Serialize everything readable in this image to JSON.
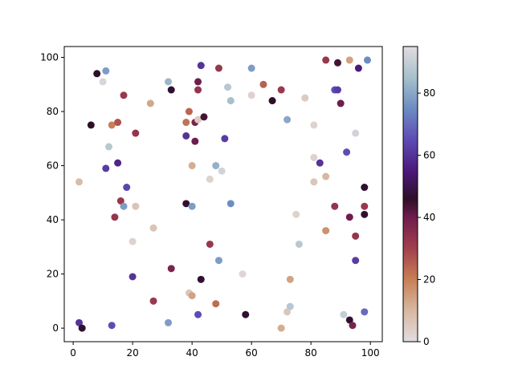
{
  "chart_data": {
    "type": "scatter",
    "title": "",
    "xlabel": "",
    "ylabel": "",
    "xlim": [
      -3,
      104
    ],
    "ylim": [
      -5,
      104
    ],
    "x_ticks": [
      0,
      20,
      40,
      60,
      80,
      100
    ],
    "y_ticks": [
      0,
      20,
      40,
      60,
      80,
      100
    ],
    "grid": false,
    "colormap": "twilight_shifted",
    "colorbar": {
      "range": [
        0,
        95
      ],
      "ticks": [
        0,
        20,
        40,
        60,
        80
      ]
    },
    "colormap_stops": [
      {
        "v": 0,
        "color": "#e2dce0"
      },
      {
        "v": 10,
        "color": "#d8b8a2"
      },
      {
        "v": 20,
        "color": "#c78056"
      },
      {
        "v": 30,
        "color": "#a33f4e"
      },
      {
        "v": 40,
        "color": "#6e1d4c"
      },
      {
        "v": 46,
        "color": "#2d0f28"
      },
      {
        "v": 55,
        "color": "#4b1a7a"
      },
      {
        "v": 65,
        "color": "#5e4bb4"
      },
      {
        "v": 75,
        "color": "#6d8cc2"
      },
      {
        "v": 85,
        "color": "#a6c0cc"
      },
      {
        "v": 95,
        "color": "#e2dce0"
      }
    ],
    "points": [
      {
        "x": 2,
        "y": 2,
        "c": 60
      },
      {
        "x": 3,
        "y": 0,
        "c": 47
      },
      {
        "x": 2,
        "y": 54,
        "c": 9
      },
      {
        "x": 6,
        "y": 75,
        "c": 46
      },
      {
        "x": 8,
        "y": 94,
        "c": 46
      },
      {
        "x": 10,
        "y": 91,
        "c": 93
      },
      {
        "x": 11,
        "y": 95,
        "c": 78
      },
      {
        "x": 11,
        "y": 59,
        "c": 62
      },
      {
        "x": 12,
        "y": 67,
        "c": 88
      },
      {
        "x": 13,
        "y": 75,
        "c": 20
      },
      {
        "x": 13,
        "y": 1,
        "c": 65
      },
      {
        "x": 14,
        "y": 41,
        "c": 33
      },
      {
        "x": 15,
        "y": 76,
        "c": 27
      },
      {
        "x": 15,
        "y": 61,
        "c": 57
      },
      {
        "x": 16,
        "y": 47,
        "c": 32
      },
      {
        "x": 17,
        "y": 86,
        "c": 32
      },
      {
        "x": 17,
        "y": 45,
        "c": 78
      },
      {
        "x": 18,
        "y": 52,
        "c": 64
      },
      {
        "x": 20,
        "y": 32,
        "c": 3
      },
      {
        "x": 20,
        "y": 19,
        "c": 60
      },
      {
        "x": 21,
        "y": 72,
        "c": 33
      },
      {
        "x": 21,
        "y": 45,
        "c": 7
      },
      {
        "x": 26,
        "y": 83,
        "c": 13
      },
      {
        "x": 27,
        "y": 37,
        "c": 7
      },
      {
        "x": 27,
        "y": 10,
        "c": 32
      },
      {
        "x": 32,
        "y": 91,
        "c": 83
      },
      {
        "x": 32,
        "y": 2,
        "c": 78
      },
      {
        "x": 33,
        "y": 88,
        "c": 47
      },
      {
        "x": 33,
        "y": 22,
        "c": 38
      },
      {
        "x": 38,
        "y": 71,
        "c": 60
      },
      {
        "x": 38,
        "y": 76,
        "c": 22
      },
      {
        "x": 38,
        "y": 46,
        "c": 47
      },
      {
        "x": 39,
        "y": 80,
        "c": 24
      },
      {
        "x": 39,
        "y": 13,
        "c": 6
      },
      {
        "x": 40,
        "y": 60,
        "c": 12
      },
      {
        "x": 40,
        "y": 45,
        "c": 78
      },
      {
        "x": 40,
        "y": 12,
        "c": 14
      },
      {
        "x": 41,
        "y": 76,
        "c": 38
      },
      {
        "x": 41,
        "y": 69,
        "c": 40
      },
      {
        "x": 42,
        "y": 91,
        "c": 40
      },
      {
        "x": 42,
        "y": 88,
        "c": 33
      },
      {
        "x": 42,
        "y": 77,
        "c": 5
      },
      {
        "x": 42,
        "y": 5,
        "c": 65
      },
      {
        "x": 43,
        "y": 97,
        "c": 60
      },
      {
        "x": 43,
        "y": 18,
        "c": 47
      },
      {
        "x": 44,
        "y": 78,
        "c": 44
      },
      {
        "x": 46,
        "y": 55,
        "c": 3
      },
      {
        "x": 46,
        "y": 31,
        "c": 32
      },
      {
        "x": 48,
        "y": 60,
        "c": 82
      },
      {
        "x": 48,
        "y": 9,
        "c": 23
      },
      {
        "x": 49,
        "y": 96,
        "c": 32
      },
      {
        "x": 49,
        "y": 25,
        "c": 78
      },
      {
        "x": 50,
        "y": 58,
        "c": 92
      },
      {
        "x": 51,
        "y": 70,
        "c": 62
      },
      {
        "x": 52,
        "y": 89,
        "c": 88
      },
      {
        "x": 53,
        "y": 84,
        "c": 85
      },
      {
        "x": 53,
        "y": 46,
        "c": 75
      },
      {
        "x": 57,
        "y": 20,
        "c": 2
      },
      {
        "x": 58,
        "y": 5,
        "c": 47
      },
      {
        "x": 60,
        "y": 96,
        "c": 78
      },
      {
        "x": 60,
        "y": 86,
        "c": 3
      },
      {
        "x": 64,
        "y": 90,
        "c": 25
      },
      {
        "x": 67,
        "y": 84,
        "c": 46
      },
      {
        "x": 70,
        "y": 88,
        "c": 32
      },
      {
        "x": 70,
        "y": 0,
        "c": 12
      },
      {
        "x": 72,
        "y": 77,
        "c": 80
      },
      {
        "x": 72,
        "y": 6,
        "c": 6
      },
      {
        "x": 73,
        "y": 18,
        "c": 14
      },
      {
        "x": 73,
        "y": 8,
        "c": 88
      },
      {
        "x": 75,
        "y": 42,
        "c": 3
      },
      {
        "x": 76,
        "y": 31,
        "c": 88
      },
      {
        "x": 78,
        "y": 85,
        "c": 5
      },
      {
        "x": 81,
        "y": 75,
        "c": 3
      },
      {
        "x": 81,
        "y": 63,
        "c": 3
      },
      {
        "x": 81,
        "y": 54,
        "c": 6
      },
      {
        "x": 83,
        "y": 61,
        "c": 60
      },
      {
        "x": 85,
        "y": 99,
        "c": 32
      },
      {
        "x": 85,
        "y": 56,
        "c": 10
      },
      {
        "x": 85,
        "y": 36,
        "c": 17
      },
      {
        "x": 88,
        "y": 88,
        "c": 65
      },
      {
        "x": 88,
        "y": 45,
        "c": 33
      },
      {
        "x": 89,
        "y": 98,
        "c": 44
      },
      {
        "x": 89,
        "y": 88,
        "c": 62
      },
      {
        "x": 90,
        "y": 83,
        "c": 40
      },
      {
        "x": 91,
        "y": 5,
        "c": 90
      },
      {
        "x": 92,
        "y": 65,
        "c": 65
      },
      {
        "x": 93,
        "y": 99,
        "c": 14
      },
      {
        "x": 93,
        "y": 41,
        "c": 40
      },
      {
        "x": 93,
        "y": 3,
        "c": 47
      },
      {
        "x": 94,
        "y": 1,
        "c": 38
      },
      {
        "x": 95,
        "y": 72,
        "c": 92
      },
      {
        "x": 95,
        "y": 34,
        "c": 33
      },
      {
        "x": 95,
        "y": 25,
        "c": 62
      },
      {
        "x": 96,
        "y": 96,
        "c": 55
      },
      {
        "x": 98,
        "y": 52,
        "c": 47
      },
      {
        "x": 98,
        "y": 45,
        "c": 32
      },
      {
        "x": 98,
        "y": 42,
        "c": 47
      },
      {
        "x": 98,
        "y": 6,
        "c": 70
      },
      {
        "x": 99,
        "y": 99,
        "c": 75
      }
    ]
  }
}
